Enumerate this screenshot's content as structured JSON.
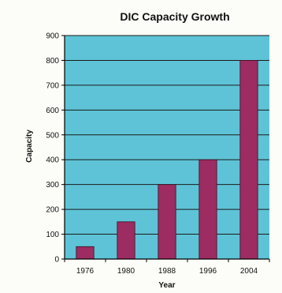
{
  "chart_data": {
    "type": "bar",
    "title": "DIC Capacity Growth",
    "xlabel": "Year",
    "ylabel": "Capacity",
    "categories": [
      "1976",
      "1980",
      "1988",
      "1996",
      "2004"
    ],
    "values": [
      50,
      150,
      300,
      400,
      800
    ],
    "ylim": [
      0,
      900
    ],
    "ytick_step": 100,
    "grid": true,
    "colors": {
      "plot_background": "#5ec3d6",
      "bar": "#9c2c61",
      "bar_outline": "#3a1024",
      "gridline": "#1c1c1c",
      "axis": "#000000"
    }
  }
}
